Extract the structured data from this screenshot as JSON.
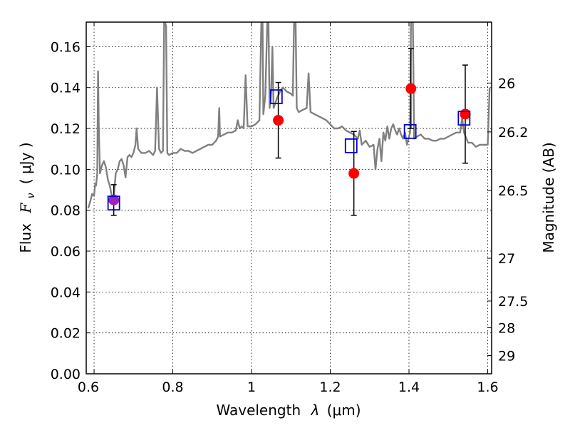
{
  "chart_data": {
    "type": "scatter",
    "xlabel_main": "Wavelength",
    "xlabel_symbol": "λ",
    "xlabel_unit": "(μm)",
    "ylabel_main": "Flux",
    "ylabel_symbol": "F",
    "ylabel_sub": "ν",
    "ylabel_unit": "( μJy )",
    "y2label": "Magnitude (AB)",
    "xlim": [
      0.58,
      1.61
    ],
    "ylim": [
      0.0,
      0.172
    ],
    "grid": true,
    "x_ticks": [
      {
        "value": 0.6,
        "label": ""
      },
      {
        "value": 0.8,
        "label": "0.8"
      },
      {
        "value": 1.0,
        "label": "1"
      },
      {
        "value": 1.2,
        "label": "1.2"
      },
      {
        "value": 1.4,
        "label": "1.4"
      },
      {
        "value": 1.6,
        "label": "1.6"
      }
    ],
    "x_edge_labels": [
      {
        "value": 0.58,
        "label": "0.6"
      }
    ],
    "y_ticks": [
      {
        "value": 0.0,
        "label": "0.00"
      },
      {
        "value": 0.02,
        "label": "0.02"
      },
      {
        "value": 0.04,
        "label": "0.04"
      },
      {
        "value": 0.06,
        "label": "0.06"
      },
      {
        "value": 0.08,
        "label": "0.08"
      },
      {
        "value": 0.1,
        "label": "0.10"
      },
      {
        "value": 0.12,
        "label": "0.12"
      },
      {
        "value": 0.14,
        "label": "0.14"
      },
      {
        "value": 0.16,
        "label": "0.16"
      }
    ],
    "y2_ticks": [
      {
        "flux": 0.1422,
        "label": "26"
      },
      {
        "flux": 0.1183,
        "label": "26.2"
      },
      {
        "flux": 0.0896,
        "label": "26.5"
      },
      {
        "flux": 0.0565,
        "label": "27"
      },
      {
        "flux": 0.0356,
        "label": "27.5"
      },
      {
        "flux": 0.0225,
        "label": "28"
      },
      {
        "flux": 0.0089,
        "label": "29"
      }
    ],
    "series": [
      {
        "kind": "line",
        "color": "#808080",
        "points": [
          [
            0.585,
            0.081
          ],
          [
            0.59,
            0.084
          ],
          [
            0.595,
            0.088
          ],
          [
            0.6,
            0.087
          ],
          [
            0.603,
            0.093
          ],
          [
            0.605,
            0.092
          ],
          [
            0.608,
            0.098
          ],
          [
            0.61,
            0.148
          ],
          [
            0.612,
            0.12
          ],
          [
            0.615,
            0.098
          ],
          [
            0.62,
            0.102
          ],
          [
            0.625,
            0.104
          ],
          [
            0.63,
            0.101
          ],
          [
            0.635,
            0.095
          ],
          [
            0.64,
            0.092
          ],
          [
            0.645,
            0.087
          ],
          [
            0.65,
            0.086
          ],
          [
            0.655,
            0.098
          ],
          [
            0.66,
            0.1
          ],
          [
            0.665,
            0.104
          ],
          [
            0.67,
            0.105
          ],
          [
            0.675,
            0.102
          ],
          [
            0.68,
            0.096
          ],
          [
            0.685,
            0.106
          ],
          [
            0.69,
            0.107
          ],
          [
            0.695,
            0.106
          ],
          [
            0.7,
            0.108
          ],
          [
            0.705,
            0.112
          ],
          [
            0.708,
            0.12
          ],
          [
            0.712,
            0.11
          ],
          [
            0.72,
            0.108
          ],
          [
            0.73,
            0.108
          ],
          [
            0.74,
            0.109
          ],
          [
            0.75,
            0.107
          ],
          [
            0.755,
            0.109
          ],
          [
            0.76,
            0.14
          ],
          [
            0.765,
            0.11
          ],
          [
            0.77,
            0.108
          ],
          [
            0.775,
            0.109
          ],
          [
            0.778,
            0.172
          ],
          [
            0.78,
            0.172
          ],
          [
            0.783,
            0.17
          ],
          [
            0.786,
            0.108
          ],
          [
            0.79,
            0.107
          ],
          [
            0.8,
            0.108
          ],
          [
            0.81,
            0.108
          ],
          [
            0.82,
            0.11
          ],
          [
            0.83,
            0.109
          ],
          [
            0.84,
            0.109
          ],
          [
            0.85,
            0.108
          ],
          [
            0.86,
            0.109
          ],
          [
            0.87,
            0.11
          ],
          [
            0.88,
            0.111
          ],
          [
            0.89,
            0.112
          ],
          [
            0.9,
            0.112
          ],
          [
            0.905,
            0.113
          ],
          [
            0.91,
            0.114
          ],
          [
            0.915,
            0.116
          ],
          [
            0.918,
            0.13
          ],
          [
            0.92,
            0.116
          ],
          [
            0.93,
            0.117
          ],
          [
            0.94,
            0.118
          ],
          [
            0.95,
            0.118
          ],
          [
            0.96,
            0.119
          ],
          [
            0.965,
            0.124
          ],
          [
            0.97,
            0.12
          ],
          [
            0.975,
            0.121
          ],
          [
            0.98,
            0.12
          ],
          [
            0.985,
            0.146
          ],
          [
            0.99,
            0.121
          ],
          [
            1.0,
            0.121
          ],
          [
            1.01,
            0.122
          ],
          [
            1.02,
            0.124
          ],
          [
            1.025,
            0.172
          ],
          [
            1.028,
            0.172
          ],
          [
            1.03,
            0.127
          ],
          [
            1.035,
            0.136
          ],
          [
            1.04,
            0.172
          ],
          [
            1.043,
            0.172
          ],
          [
            1.046,
            0.13
          ],
          [
            1.05,
            0.138
          ],
          [
            1.053,
            0.16
          ],
          [
            1.056,
            0.13
          ],
          [
            1.06,
            0.132
          ],
          [
            1.065,
            0.135
          ],
          [
            1.07,
            0.137
          ],
          [
            1.075,
            0.139
          ],
          [
            1.08,
            0.14
          ],
          [
            1.09,
            0.138
          ],
          [
            1.1,
            0.137
          ],
          [
            1.105,
            0.136
          ],
          [
            1.108,
            0.172
          ],
          [
            1.112,
            0.172
          ],
          [
            1.115,
            0.13
          ],
          [
            1.12,
            0.128
          ],
          [
            1.13,
            0.129
          ],
          [
            1.14,
            0.13
          ],
          [
            1.145,
            0.147
          ],
          [
            1.15,
            0.128
          ],
          [
            1.16,
            0.127
          ],
          [
            1.17,
            0.126
          ],
          [
            1.18,
            0.125
          ],
          [
            1.19,
            0.124
          ],
          [
            1.2,
            0.122
          ],
          [
            1.21,
            0.12
          ],
          [
            1.22,
            0.12
          ],
          [
            1.23,
            0.121
          ],
          [
            1.24,
            0.119
          ],
          [
            1.25,
            0.118
          ],
          [
            1.26,
            0.117
          ],
          [
            1.27,
            0.115
          ],
          [
            1.275,
            0.119
          ],
          [
            1.28,
            0.112
          ],
          [
            1.29,
            0.114
          ],
          [
            1.3,
            0.111
          ],
          [
            1.31,
            0.112
          ],
          [
            1.315,
            0.1
          ],
          [
            1.32,
            0.11
          ],
          [
            1.325,
            0.115
          ],
          [
            1.33,
            0.104
          ],
          [
            1.335,
            0.118
          ],
          [
            1.34,
            0.114
          ],
          [
            1.345,
            0.121
          ],
          [
            1.35,
            0.115
          ],
          [
            1.355,
            0.12
          ],
          [
            1.36,
            0.122
          ],
          [
            1.365,
            0.119
          ],
          [
            1.37,
            0.117
          ],
          [
            1.375,
            0.12
          ],
          [
            1.38,
            0.117
          ],
          [
            1.385,
            0.115
          ],
          [
            1.39,
            0.118
          ],
          [
            1.395,
            0.112
          ],
          [
            1.4,
            0.116
          ],
          [
            1.403,
            0.118
          ],
          [
            1.405,
            0.172
          ],
          [
            1.41,
            0.172
          ],
          [
            1.413,
            0.115
          ],
          [
            1.42,
            0.116
          ],
          [
            1.43,
            0.117
          ],
          [
            1.44,
            0.115
          ],
          [
            1.45,
            0.115
          ],
          [
            1.46,
            0.114
          ],
          [
            1.47,
            0.114
          ],
          [
            1.48,
            0.115
          ],
          [
            1.49,
            0.115
          ],
          [
            1.5,
            0.116
          ],
          [
            1.51,
            0.117
          ],
          [
            1.52,
            0.118
          ],
          [
            1.53,
            0.118
          ],
          [
            1.535,
            0.125
          ],
          [
            1.54,
            0.118
          ],
          [
            1.55,
            0.113
          ],
          [
            1.56,
            0.113
          ],
          [
            1.57,
            0.111
          ],
          [
            1.58,
            0.112
          ],
          [
            1.59,
            0.112
          ],
          [
            1.6,
            0.112
          ],
          [
            1.605,
            0.14
          ]
        ]
      },
      {
        "kind": "errorbar",
        "color": "#000000",
        "points": [
          {
            "x": 0.65,
            "y": 0.085,
            "yerr": 0.0075
          },
          {
            "x": 1.068,
            "y": 0.124,
            "yerr": 0.0185
          },
          {
            "x": 1.26,
            "y": 0.098,
            "yerr": 0.0205
          },
          {
            "x": 1.405,
            "y": 0.1395,
            "yerr": 0.0195
          },
          {
            "x": 1.543,
            "y": 0.127,
            "yerr": 0.024
          }
        ]
      },
      {
        "kind": "markers-square",
        "color": "#0000cc",
        "points": [
          [
            0.65,
            0.0835
          ],
          [
            1.063,
            0.1355
          ],
          [
            1.253,
            0.1115
          ],
          [
            1.403,
            0.1185
          ],
          [
            1.54,
            0.125
          ]
        ]
      },
      {
        "kind": "markers-circle",
        "color": "#ff0000",
        "points": [
          [
            0.65,
            0.085
          ],
          [
            1.068,
            0.124
          ],
          [
            1.26,
            0.098
          ],
          [
            1.405,
            0.1395
          ],
          [
            1.543,
            0.127
          ]
        ]
      }
    ],
    "overlap_color": "#a020c0"
  }
}
